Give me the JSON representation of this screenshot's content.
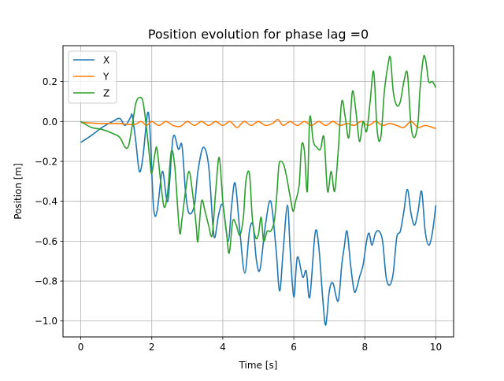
{
  "chart_data": {
    "type": "line",
    "title": "Position evolution for phase lag =0",
    "xlabel": "Time [s]",
    "ylabel": "Position [m]",
    "xlim": [
      -0.5,
      10.5
    ],
    "ylim": [
      -1.08,
      0.38
    ],
    "xticks": [
      0,
      2,
      4,
      6,
      8,
      10
    ],
    "yticks": [
      -1.0,
      -0.8,
      -0.6,
      -0.4,
      -0.2,
      0.0,
      0.2
    ],
    "xtick_labels": [
      "0",
      "2",
      "4",
      "6",
      "8",
      "10"
    ],
    "ytick_labels": [
      "−1.0",
      "−0.8",
      "−0.6",
      "−0.4",
      "−0.2",
      "0.0",
      "0.2"
    ],
    "grid": true,
    "legend_position": "top-left",
    "series": [
      {
        "name": "X",
        "color": "#1f77b4",
        "points": [
          [
            0,
            -0.105
          ],
          [
            0.3,
            -0.07
          ],
          [
            0.6,
            -0.03
          ],
          [
            0.9,
            0.0
          ],
          [
            1.1,
            0.015
          ],
          [
            1.25,
            -0.02
          ],
          [
            1.4,
            0.02
          ],
          [
            1.45,
            0.03
          ],
          [
            1.55,
            -0.1
          ],
          [
            1.65,
            -0.25
          ],
          [
            1.75,
            -0.18
          ],
          [
            1.88,
            0.04
          ],
          [
            1.95,
            -0.05
          ],
          [
            2.05,
            -0.43
          ],
          [
            2.15,
            -0.45
          ],
          [
            2.3,
            -0.25
          ],
          [
            2.45,
            -0.4
          ],
          [
            2.6,
            -0.08
          ],
          [
            2.75,
            -0.14
          ],
          [
            2.85,
            -0.12
          ],
          [
            2.95,
            -0.35
          ],
          [
            3.05,
            -0.46
          ],
          [
            3.2,
            -0.42
          ],
          [
            3.3,
            -0.25
          ],
          [
            3.45,
            -0.13
          ],
          [
            3.6,
            -0.22
          ],
          [
            3.72,
            -0.52
          ],
          [
            3.78,
            -0.58
          ],
          [
            3.88,
            -0.47
          ],
          [
            4.0,
            -0.42
          ],
          [
            4.15,
            -0.6
          ],
          [
            4.25,
            -0.42
          ],
          [
            4.35,
            -0.31
          ],
          [
            4.48,
            -0.55
          ],
          [
            4.62,
            -0.76
          ],
          [
            4.75,
            -0.55
          ],
          [
            4.85,
            -0.52
          ],
          [
            4.95,
            -0.7
          ],
          [
            5.05,
            -0.74
          ],
          [
            5.2,
            -0.52
          ],
          [
            5.35,
            -0.4
          ],
          [
            5.5,
            -0.64
          ],
          [
            5.6,
            -0.85
          ],
          [
            5.7,
            -0.65
          ],
          [
            5.82,
            -0.42
          ],
          [
            5.9,
            -0.65
          ],
          [
            6.0,
            -0.88
          ],
          [
            6.1,
            -0.68
          ],
          [
            6.25,
            -0.78
          ],
          [
            6.35,
            -0.75
          ],
          [
            6.45,
            -0.88
          ],
          [
            6.6,
            -0.56
          ],
          [
            6.7,
            -0.62
          ],
          [
            6.82,
            -0.9
          ],
          [
            6.9,
            -1.02
          ],
          [
            7.0,
            -0.85
          ],
          [
            7.1,
            -0.81
          ],
          [
            7.25,
            -0.9
          ],
          [
            7.35,
            -0.72
          ],
          [
            7.42,
            -0.63
          ],
          [
            7.5,
            -0.55
          ],
          [
            7.6,
            -0.72
          ],
          [
            7.7,
            -0.85
          ],
          [
            7.78,
            -0.83
          ],
          [
            7.85,
            -0.78
          ],
          [
            7.95,
            -0.72
          ],
          [
            8.05,
            -0.6
          ],
          [
            8.12,
            -0.56
          ],
          [
            8.2,
            -0.62
          ],
          [
            8.3,
            -0.56
          ],
          [
            8.4,
            -0.55
          ],
          [
            8.5,
            -0.6
          ],
          [
            8.6,
            -0.78
          ],
          [
            8.7,
            -0.82
          ],
          [
            8.8,
            -0.76
          ],
          [
            8.9,
            -0.58
          ],
          [
            9.0,
            -0.55
          ],
          [
            9.1,
            -0.45
          ],
          [
            9.2,
            -0.34
          ],
          [
            9.3,
            -0.46
          ],
          [
            9.4,
            -0.52
          ],
          [
            9.5,
            -0.45
          ],
          [
            9.6,
            -0.35
          ],
          [
            9.7,
            -0.55
          ],
          [
            9.8,
            -0.62
          ],
          [
            9.9,
            -0.56
          ],
          [
            10.0,
            -0.42
          ]
        ]
      },
      {
        "name": "Y",
        "color": "#ff7f0e",
        "points": [
          [
            0,
            -0.005
          ],
          [
            0.5,
            -0.01
          ],
          [
            1.0,
            -0.01
          ],
          [
            1.5,
            -0.015
          ],
          [
            1.7,
            0.0
          ],
          [
            1.85,
            -0.02
          ],
          [
            2.0,
            0.0
          ],
          [
            2.2,
            -0.02
          ],
          [
            2.4,
            0.0
          ],
          [
            2.6,
            -0.02
          ],
          [
            2.8,
            -0.025
          ],
          [
            3.0,
            0.0
          ],
          [
            3.2,
            -0.02
          ],
          [
            3.4,
            0.0
          ],
          [
            3.6,
            -0.02
          ],
          [
            3.8,
            0.0
          ],
          [
            4.0,
            -0.02
          ],
          [
            4.2,
            0.0
          ],
          [
            4.4,
            -0.03
          ],
          [
            4.6,
            0.0
          ],
          [
            4.8,
            -0.02
          ],
          [
            5.0,
            0.0
          ],
          [
            5.2,
            -0.02
          ],
          [
            5.4,
            -0.01
          ],
          [
            5.55,
            0.01
          ],
          [
            5.7,
            -0.02
          ],
          [
            5.9,
            0.0
          ],
          [
            6.1,
            -0.02
          ],
          [
            6.3,
            0.0
          ],
          [
            6.5,
            -0.02
          ],
          [
            6.7,
            0.0
          ],
          [
            6.9,
            -0.02
          ],
          [
            7.1,
            0.0
          ],
          [
            7.3,
            -0.02
          ],
          [
            7.5,
            -0.01
          ],
          [
            7.7,
            -0.02
          ],
          [
            7.9,
            0.0
          ],
          [
            8.1,
            -0.02
          ],
          [
            8.3,
            0.0
          ],
          [
            8.5,
            -0.02
          ],
          [
            8.7,
            -0.01
          ],
          [
            8.9,
            -0.02
          ],
          [
            9.1,
            -0.03
          ],
          [
            9.3,
            0.0
          ],
          [
            9.5,
            -0.03
          ],
          [
            9.7,
            -0.02
          ],
          [
            9.9,
            -0.03
          ],
          [
            10.0,
            -0.035
          ]
        ]
      },
      {
        "name": "Z",
        "color": "#2ca02c",
        "points": [
          [
            0,
            0.0
          ],
          [
            0.3,
            -0.03
          ],
          [
            0.6,
            -0.04
          ],
          [
            0.9,
            -0.06
          ],
          [
            1.1,
            -0.08
          ],
          [
            1.25,
            -0.13
          ],
          [
            1.35,
            -0.12
          ],
          [
            1.45,
            -0.02
          ],
          [
            1.55,
            0.09
          ],
          [
            1.65,
            0.12
          ],
          [
            1.75,
            0.1
          ],
          [
            1.85,
            -0.03
          ],
          [
            1.95,
            -0.2
          ],
          [
            2.0,
            -0.26
          ],
          [
            2.1,
            -0.15
          ],
          [
            2.15,
            -0.14
          ],
          [
            2.25,
            -0.3
          ],
          [
            2.35,
            -0.43
          ],
          [
            2.45,
            -0.35
          ],
          [
            2.55,
            -0.15
          ],
          [
            2.65,
            -0.23
          ],
          [
            2.78,
            -0.55
          ],
          [
            2.85,
            -0.49
          ],
          [
            2.95,
            -0.35
          ],
          [
            3.05,
            -0.25
          ],
          [
            3.15,
            -0.36
          ],
          [
            3.25,
            -0.52
          ],
          [
            3.3,
            -0.6
          ],
          [
            3.4,
            -0.4
          ],
          [
            3.5,
            -0.45
          ],
          [
            3.6,
            -0.52
          ],
          [
            3.7,
            -0.57
          ],
          [
            3.8,
            -0.35
          ],
          [
            3.9,
            -0.18
          ],
          [
            4.0,
            -0.4
          ],
          [
            4.1,
            -0.55
          ],
          [
            4.18,
            -0.66
          ],
          [
            4.28,
            -0.5
          ],
          [
            4.38,
            -0.52
          ],
          [
            4.48,
            -0.57
          ],
          [
            4.58,
            -0.48
          ],
          [
            4.65,
            -0.3
          ],
          [
            4.75,
            -0.26
          ],
          [
            4.83,
            -0.48
          ],
          [
            4.92,
            -0.58
          ],
          [
            5.0,
            -0.57
          ],
          [
            5.08,
            -0.48
          ],
          [
            5.15,
            -0.6
          ],
          [
            5.25,
            -0.55
          ],
          [
            5.35,
            -0.55
          ],
          [
            5.45,
            -0.5
          ],
          [
            5.52,
            -0.37
          ],
          [
            5.58,
            -0.22
          ],
          [
            5.65,
            -0.2
          ],
          [
            5.72,
            -0.22
          ],
          [
            5.8,
            -0.28
          ],
          [
            5.9,
            -0.38
          ],
          [
            5.98,
            -0.45
          ],
          [
            6.05,
            -0.4
          ],
          [
            6.15,
            -0.32
          ],
          [
            6.22,
            -0.12
          ],
          [
            6.3,
            -0.15
          ],
          [
            6.38,
            -0.35
          ],
          [
            6.45,
            0.02
          ],
          [
            6.55,
            -0.1
          ],
          [
            6.65,
            -0.13
          ],
          [
            6.75,
            -0.14
          ],
          [
            6.85,
            -0.08
          ],
          [
            6.95,
            -0.35
          ],
          [
            7.05,
            -0.25
          ],
          [
            7.15,
            -0.35
          ],
          [
            7.25,
            -0.15
          ],
          [
            7.35,
            0.1
          ],
          [
            7.45,
            0.02
          ],
          [
            7.55,
            -0.08
          ],
          [
            7.65,
            0.15
          ],
          [
            7.75,
            0.05
          ],
          [
            7.85,
            -0.1
          ],
          [
            7.95,
            0.0
          ],
          [
            8.05,
            -0.05
          ],
          [
            8.15,
            0.1
          ],
          [
            8.25,
            0.25
          ],
          [
            8.35,
            -0.05
          ],
          [
            8.45,
            -0.08
          ],
          [
            8.55,
            0.15
          ],
          [
            8.65,
            0.28
          ],
          [
            8.72,
            0.32
          ],
          [
            8.8,
            0.15
          ],
          [
            8.9,
            0.08
          ],
          [
            9.0,
            0.1
          ],
          [
            9.1,
            0.2
          ],
          [
            9.2,
            0.24
          ],
          [
            9.3,
            -0.02
          ],
          [
            9.4,
            -0.08
          ],
          [
            9.5,
            0.0
          ],
          [
            9.55,
            0.15
          ],
          [
            9.65,
            0.32
          ],
          [
            9.72,
            0.3
          ],
          [
            9.8,
            0.2
          ],
          [
            9.9,
            0.2
          ],
          [
            10.0,
            0.17
          ]
        ]
      }
    ]
  }
}
